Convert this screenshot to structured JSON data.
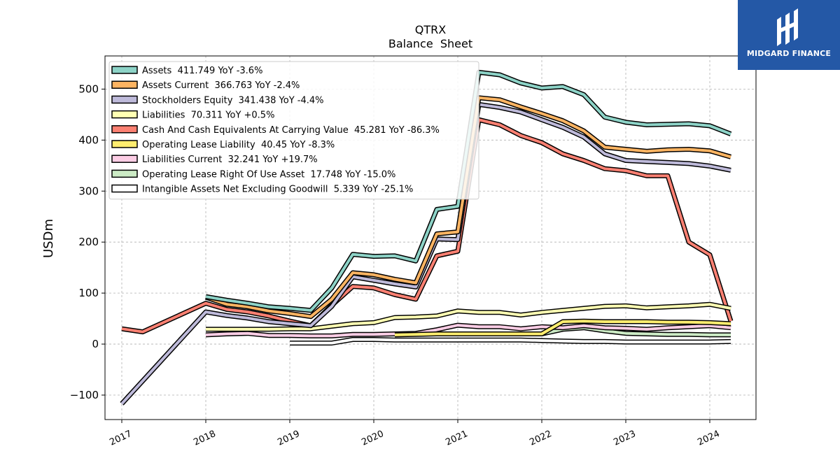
{
  "brand": {
    "name": "MIDGARD FINANCE",
    "color": "#2458a6",
    "icon": "midgard-logo-icon"
  },
  "chart_data": {
    "type": "line",
    "title": "QTRX",
    "subtitle": "Balance  Sheet",
    "xlabel": "",
    "ylabel": "USDm",
    "xlim": [
      2016.8,
      2024.55
    ],
    "ylim": [
      -148,
      565
    ],
    "yticks": [
      -100,
      0,
      100,
      200,
      300,
      400,
      500
    ],
    "xticks": [
      2017,
      2018,
      2019,
      2020,
      2021,
      2022,
      2023,
      2024
    ],
    "xtick_labels": [
      "2017",
      "2018",
      "2019",
      "2020",
      "2021",
      "2022",
      "2023",
      "2024"
    ],
    "ytick_labels": [
      "−100",
      "0",
      "100",
      "200",
      "300",
      "400",
      "500"
    ],
    "grid": true,
    "legend_position": "top-left",
    "series": [
      {
        "name": "Assets  411.749 YoY -3.6%",
        "color": "#8dd3c7",
        "x": [
          2018.0,
          2018.25,
          2018.5,
          2018.75,
          2019.0,
          2019.25,
          2019.5,
          2019.75,
          2020.0,
          2020.25,
          2020.5,
          2020.75,
          2021.0,
          2021.25,
          2021.5,
          2021.75,
          2022.0,
          2022.25,
          2022.5,
          2022.75,
          2023.0,
          2023.25,
          2023.5,
          2023.75,
          2024.0,
          2024.25
        ],
        "y": [
          93,
          86,
          80,
          73,
          70,
          66,
          110,
          176,
          172,
          173,
          163,
          264,
          270,
          533,
          528,
          512,
          502,
          505,
          489,
          445,
          435,
          430,
          431,
          432,
          428,
          412
        ]
      },
      {
        "name": "Assets Current  366.763 YoY -2.4%",
        "color": "#fdb462",
        "x": [
          2018.0,
          2018.25,
          2018.5,
          2018.75,
          2019.0,
          2019.25,
          2019.5,
          2019.75,
          2020.0,
          2020.25,
          2020.5,
          2020.75,
          2021.0,
          2021.25,
          2021.5,
          2021.75,
          2022.0,
          2022.25,
          2022.5,
          2022.75,
          2023.0,
          2023.25,
          2023.5,
          2023.75,
          2024.0,
          2024.25
        ],
        "y": [
          92,
          78,
          73,
          65,
          60,
          54,
          88,
          140,
          136,
          127,
          120,
          216,
          220,
          483,
          479,
          465,
          452,
          438,
          418,
          386,
          382,
          378,
          381,
          382,
          379,
          367
        ]
      },
      {
        "name": "Stockholders Equity  341.438 YoY -4.4%",
        "color": "#bebada",
        "x": [
          2017.0,
          2018.0,
          2018.25,
          2018.5,
          2018.75,
          2019.0,
          2019.25,
          2019.5,
          2019.75,
          2020.0,
          2020.25,
          2020.5,
          2020.75,
          2021.0,
          2021.25,
          2021.5,
          2021.75,
          2022.0,
          2022.25,
          2022.5,
          2022.75,
          2023.0,
          2023.25,
          2023.5,
          2023.75,
          2024.0,
          2024.25
        ],
        "y": [
          -117,
          63,
          56,
          51,
          44,
          40,
          36,
          74,
          132,
          125,
          118,
          112,
          206,
          205,
          470,
          464,
          455,
          440,
          425,
          406,
          373,
          360,
          358,
          356,
          354,
          349,
          341
        ]
      },
      {
        "name": "Liabilities  70.311 YoY +0.5%",
        "color": "#ffffb3",
        "x": [
          2018.0,
          2018.25,
          2018.5,
          2018.75,
          2019.0,
          2019.25,
          2019.5,
          2019.75,
          2020.0,
          2020.25,
          2020.5,
          2020.75,
          2021.0,
          2021.25,
          2021.5,
          2021.75,
          2022.0,
          2022.25,
          2022.5,
          2022.75,
          2023.0,
          2023.25,
          2023.5,
          2023.75,
          2024.0,
          2024.25
        ],
        "y": [
          29,
          29,
          29,
          29,
          30,
          30,
          35,
          40,
          42,
          52,
          53,
          55,
          65,
          62,
          62,
          57,
          62,
          66,
          70,
          74,
          75,
          71,
          73,
          75,
          78,
          70
        ]
      },
      {
        "name": "Cash And Cash Equivalents At Carrying Value  45.281 YoY -86.3%",
        "color": "#fb8072",
        "x": [
          2017.0,
          2017.25,
          2018.0,
          2018.25,
          2018.5,
          2018.75,
          2019.0,
          2019.25,
          2019.5,
          2019.75,
          2020.0,
          2020.25,
          2020.5,
          2020.75,
          2021.0,
          2021.25,
          2021.5,
          2021.75,
          2022.0,
          2022.25,
          2022.5,
          2022.75,
          2023.0,
          2023.25,
          2023.5,
          2023.75,
          2024.0,
          2024.25
        ],
        "y": [
          30,
          24,
          80,
          68,
          63,
          55,
          45,
          36,
          76,
          113,
          110,
          97,
          88,
          173,
          182,
          440,
          430,
          409,
          395,
          373,
          360,
          344,
          340,
          330,
          330,
          200,
          175,
          45
        ]
      },
      {
        "name": "Operating Lease Liability  40.45 YoY -8.3%",
        "color": "#ffed6f",
        "x": [
          2020.25,
          2020.5,
          2020.75,
          2021.0,
          2021.25,
          2021.5,
          2021.75,
          2022.0,
          2022.25,
          2022.5,
          2022.75,
          2023.0,
          2023.25,
          2023.5,
          2023.75,
          2024.0,
          2024.25
        ],
        "y": [
          18,
          19,
          20,
          20,
          20,
          20,
          20,
          20,
          44,
          45,
          44,
          44,
          44,
          43,
          43,
          42,
          40
        ]
      },
      {
        "name": "Liabilities Current  32.241 YoY +19.7%",
        "color": "#fccde5",
        "x": [
          2018.0,
          2018.25,
          2018.5,
          2018.75,
          2019.0,
          2019.25,
          2019.5,
          2019.75,
          2020.0,
          2020.25,
          2020.5,
          2020.75,
          2021.0,
          2021.25,
          2021.5,
          2021.75,
          2022.0,
          2022.25,
          2022.5,
          2022.75,
          2023.0,
          2023.25,
          2023.5,
          2023.75,
          2024.0,
          2024.25
        ],
        "y": [
          18,
          20,
          21,
          17,
          17,
          16,
          16,
          19,
          19,
          20,
          21,
          28,
          37,
          34,
          34,
          30,
          34,
          32,
          36,
          32,
          31,
          29,
          32,
          34,
          36,
          32
        ]
      },
      {
        "name": "Operating Lease Right Of Use Asset  17.748 YoY -15.0%",
        "color": "#ccebc5",
        "x": [
          2022.0,
          2022.25,
          2022.5,
          2022.75,
          2023.0,
          2023.25,
          2023.5,
          2023.75,
          2024.0,
          2024.25
        ],
        "y": [
          20,
          29,
          32,
          26,
          21,
          20,
          19,
          19,
          18,
          18
        ]
      },
      {
        "name": "Intangible Assets Net Excluding Goodwill  5.339 YoY -25.1%",
        "color": "#ffffff",
        "x": [
          2019.0,
          2019.25,
          2019.5,
          2019.75,
          2020.0,
          2020.25,
          2020.5,
          2020.75,
          2021.0,
          2021.25,
          2021.5,
          2021.75,
          2022.0,
          2022.25,
          2022.5,
          2022.75,
          2023.0,
          2023.25,
          2023.5,
          2023.75,
          2024.0,
          2024.25
        ],
        "y": [
          2,
          2,
          2,
          9,
          9,
          8,
          8,
          8,
          8,
          8,
          8,
          8,
          7,
          6,
          5,
          5,
          4,
          4,
          4,
          4,
          4,
          5
        ]
      }
    ]
  }
}
